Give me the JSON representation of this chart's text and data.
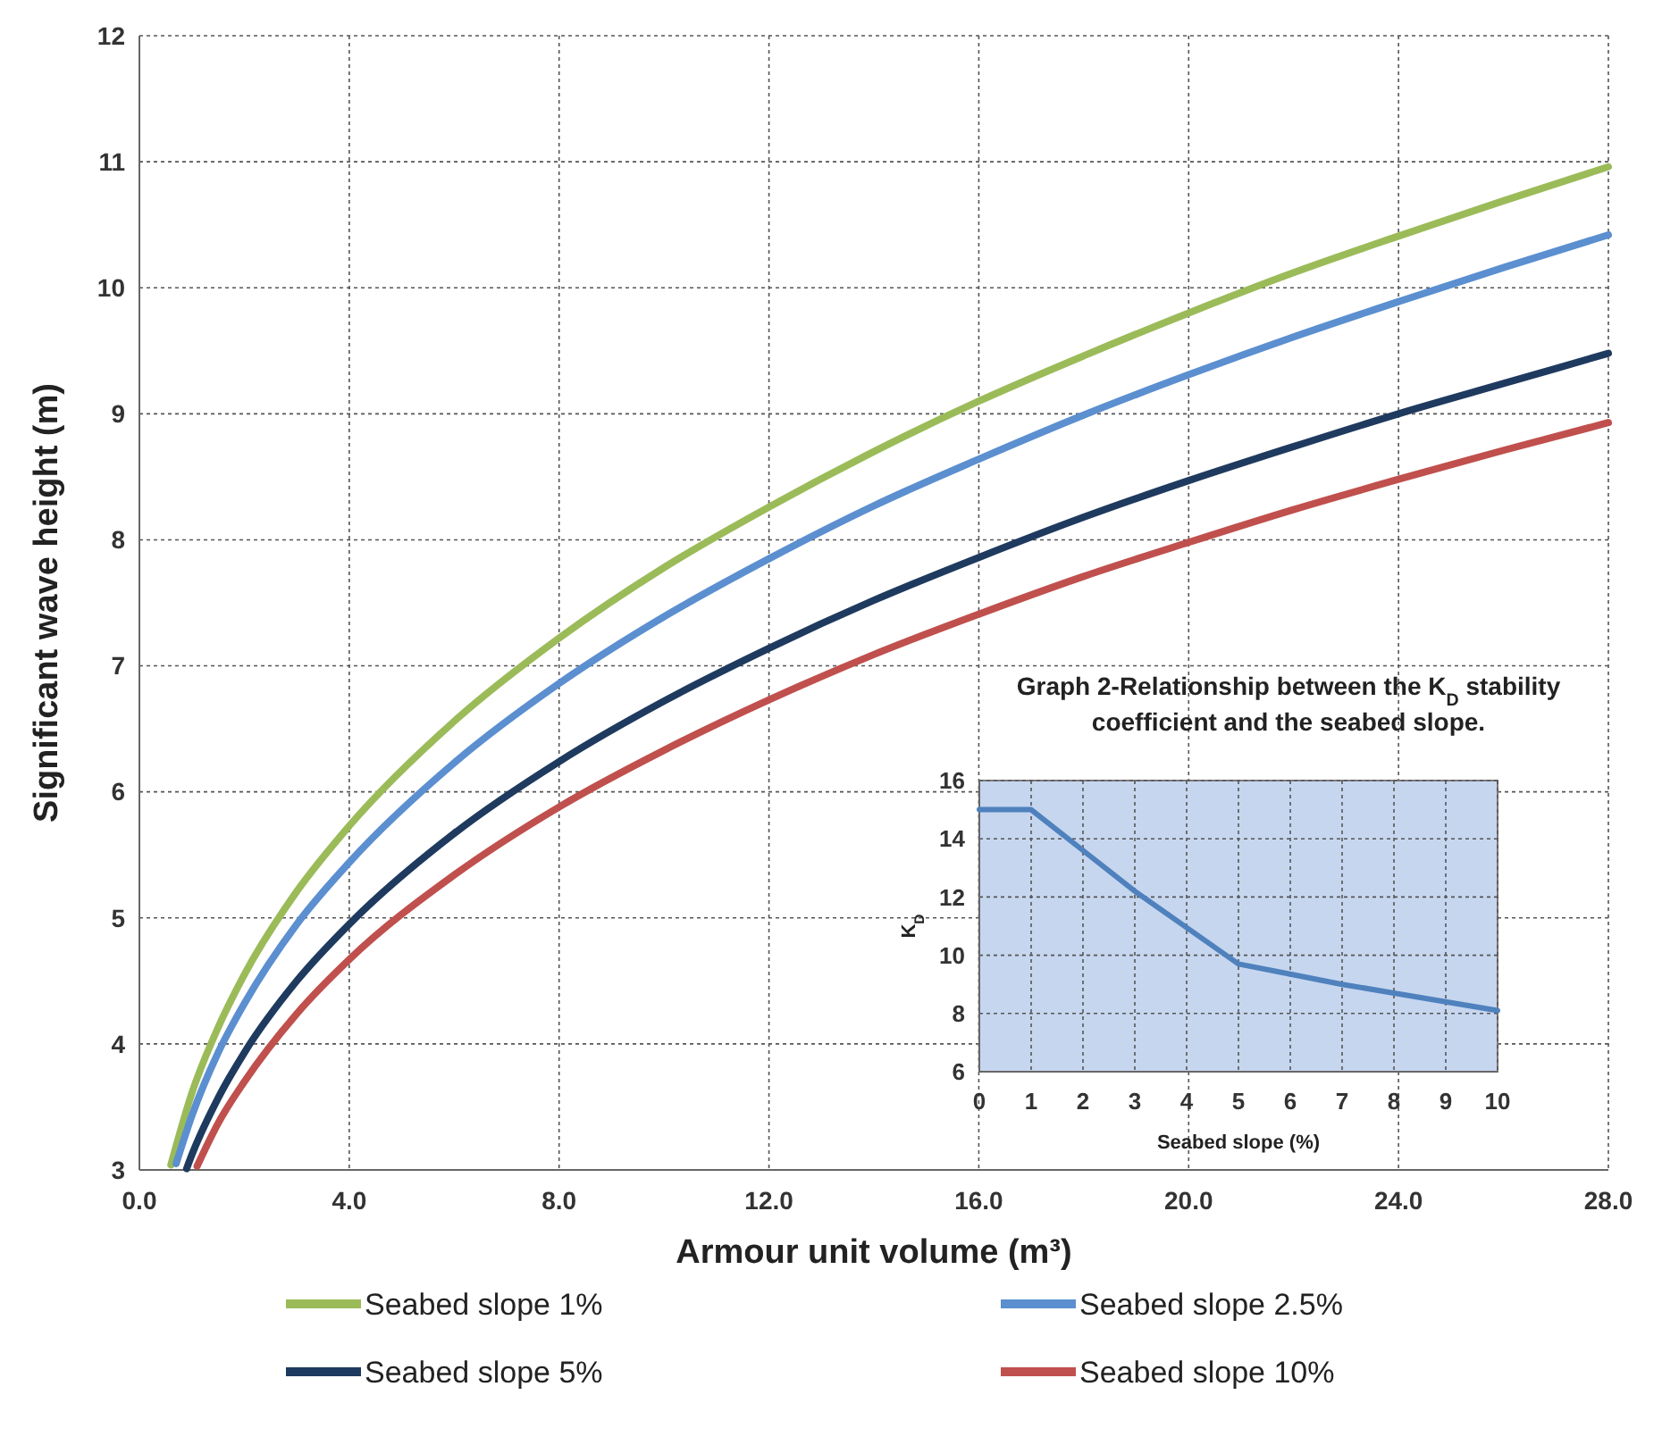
{
  "chart_data": [
    {
      "type": "line",
      "xlabel": "Armour unit volume (m³)",
      "ylabel": "Significant wave height (m)",
      "xlim": [
        0,
        28
      ],
      "ylim": [
        3,
        12
      ],
      "xticks": [
        {
          "value": 0,
          "label": "0.0"
        },
        {
          "value": 4,
          "label": "4.0"
        },
        {
          "value": 8,
          "label": "8.0"
        },
        {
          "value": 12,
          "label": "12.0"
        },
        {
          "value": 16,
          "label": "16.0"
        },
        {
          "value": 20,
          "label": "20.0"
        },
        {
          "value": 24,
          "label": "24.0"
        },
        {
          "value": 28,
          "label": "28.0"
        }
      ],
      "yticks": [
        3,
        4,
        5,
        6,
        7,
        8,
        9,
        10,
        11,
        12
      ],
      "grid": true,
      "legend": "bottom",
      "marker": "none",
      "line_style": "solid",
      "series": [
        {
          "name": "Seabed slope 1%",
          "color": "#9bbb59",
          "x": [
            0.6,
            1,
            1.5,
            2,
            3,
            4,
            6,
            8,
            10,
            12,
            14,
            16,
            18,
            20,
            22,
            24,
            26,
            28
          ],
          "values": [
            3.04,
            3.61,
            4.13,
            4.55,
            5.21,
            5.73,
            6.56,
            7.22,
            7.78,
            8.26,
            8.7,
            9.1,
            9.46,
            9.8,
            10.12,
            10.41,
            10.69,
            10.96
          ]
        },
        {
          "name": "Seabed slope 2.5%",
          "color": "#5b8fd0",
          "x": [
            0.7,
            1,
            1.5,
            2,
            3,
            4,
            6,
            8,
            10,
            12,
            14,
            16,
            18,
            20,
            22,
            24,
            26,
            28
          ],
          "values": [
            3.05,
            3.43,
            3.93,
            4.32,
            4.95,
            5.44,
            6.23,
            6.86,
            7.39,
            7.85,
            8.27,
            8.64,
            8.99,
            9.31,
            9.61,
            9.89,
            10.16,
            10.42
          ]
        },
        {
          "name": "Seabed slope 5%",
          "color": "#1f3a5f",
          "x": [
            0.9,
            1,
            1.5,
            2,
            3,
            4,
            6,
            8,
            10,
            12,
            14,
            16,
            18,
            20,
            22,
            24,
            26,
            28
          ],
          "values": [
            3.01,
            3.12,
            3.57,
            3.93,
            4.5,
            4.95,
            5.67,
            6.24,
            6.72,
            7.14,
            7.52,
            7.86,
            8.18,
            8.47,
            8.74,
            9.0,
            9.24,
            9.48
          ]
        },
        {
          "name": "Seabed slope 10%",
          "color": "#c0504d",
          "x": [
            1.1,
            1.5,
            2,
            3,
            4,
            6,
            8,
            10,
            12,
            14,
            16,
            18,
            20,
            22,
            24,
            26,
            28
          ],
          "values": [
            3.03,
            3.37,
            3.7,
            4.24,
            4.67,
            5.34,
            5.88,
            6.33,
            6.73,
            7.09,
            7.41,
            7.71,
            7.98,
            8.24,
            8.48,
            8.71,
            8.93
          ]
        }
      ]
    },
    {
      "type": "line",
      "title": "Graph 2-Relationship between the K$_{D}$ stability coefficient  and the seabed slope.",
      "xlabel": "Seabed slope (%)",
      "ylabel": "K$_{D}$",
      "xlim": [
        0,
        10
      ],
      "ylim": [
        6,
        16
      ],
      "xticks": [
        0,
        1,
        2,
        3,
        4,
        5,
        6,
        7,
        8,
        9,
        10
      ],
      "yticks": [
        6,
        8,
        10,
        12,
        14,
        16
      ],
      "grid": true,
      "marker": "none",
      "line_style": "solid",
      "series": [
        {
          "color": "#4f81bd",
          "x": [
            0,
            1,
            2,
            3,
            4,
            5,
            6,
            7,
            8,
            9,
            10
          ],
          "values": [
            15,
            15,
            13.6,
            12.2,
            10.95,
            9.7,
            9.35,
            9.0,
            8.7,
            8.4,
            8.1
          ]
        }
      ]
    }
  ]
}
